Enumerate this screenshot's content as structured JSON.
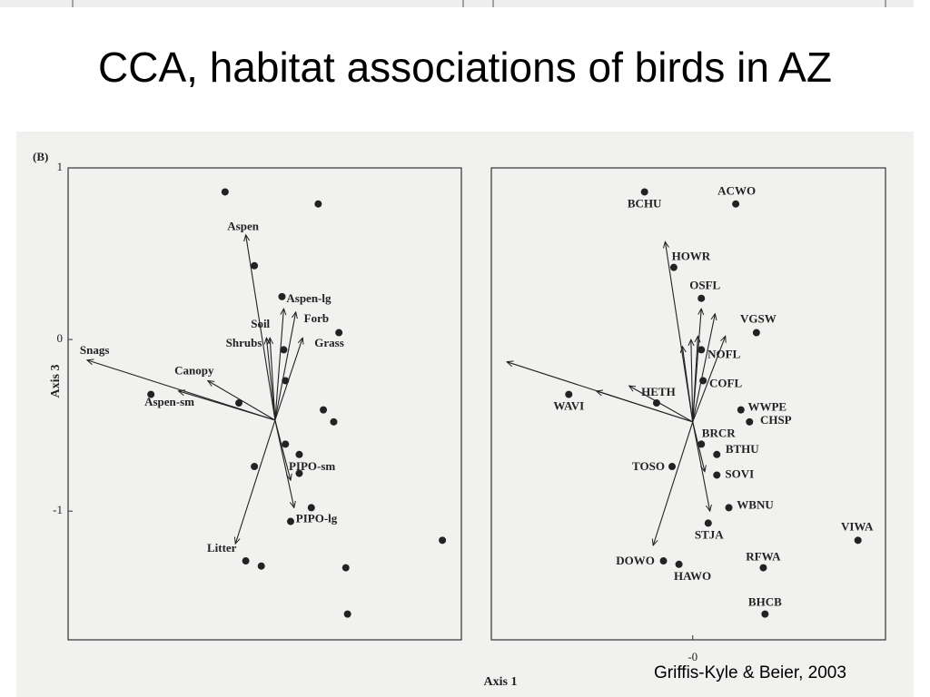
{
  "title": "CCA, habitat associations of birds in AZ",
  "credit": "Griffis-Kyle & Beier, 2003",
  "figure_label": "(B)",
  "x_label": "Axis 1",
  "y_label": "Axis 3",
  "chart_data": [
    {
      "type": "scatter",
      "color": "#222222",
      "xlim": [
        -1.2,
        1.08
      ],
      "ylim": [
        -1.75,
        1.0
      ],
      "yticks": [
        1,
        0,
        -1
      ],
      "x": [
        -0.29,
        0.25,
        -0.12,
        0.04,
        0.37,
        0.05,
        0.06,
        -0.72,
        -0.21,
        0.28,
        0.34,
        0.06,
        0.14,
        -0.12,
        0.14,
        0.21,
        0.09,
        0.97,
        -0.17,
        -0.08,
        0.41,
        0.42
      ],
      "y": [
        0.86,
        0.79,
        0.43,
        0.25,
        0.04,
        -0.06,
        -0.24,
        -0.32,
        -0.37,
        -0.41,
        -0.48,
        -0.61,
        -0.67,
        -0.74,
        -0.78,
        -0.98,
        -1.06,
        -1.17,
        -1.29,
        -1.32,
        -1.33,
        -1.6
      ],
      "vector_origin": {
        "x": 0,
        "y": -0.47
      },
      "vectors": [
        {
          "label": "Aspen",
          "x": -0.17,
          "y": 0.61
        },
        {
          "label": "Aspen-lg",
          "x": 0.05,
          "y": 0.18
        },
        {
          "label": "Forb",
          "x": 0.12,
          "y": 0.16
        },
        {
          "label": "Soil",
          "x": -0.03,
          "y": 0.01
        },
        {
          "label": "Shrubs",
          "x": -0.05,
          "y": 0.01
        },
        {
          "label": "Grass",
          "x": 0.16,
          "y": 0.01
        },
        {
          "label": "Snags",
          "x": -1.09,
          "y": -0.12
        },
        {
          "label": "Canopy",
          "x": -0.39,
          "y": -0.24
        },
        {
          "label": "Aspen-sm",
          "x": -0.56,
          "y": -0.3
        },
        {
          "label": "PIPO-sm",
          "x": 0.09,
          "y": -0.82
        },
        {
          "label": "PIPO-lg",
          "x": 0.11,
          "y": -0.98
        },
        {
          "label": "Litter",
          "x": -0.23,
          "y": -1.19
        }
      ]
    },
    {
      "type": "scatter",
      "color": "#222222",
      "xlim": [
        -1.17,
        1.12
      ],
      "ylim": [
        -1.75,
        1.0
      ],
      "xticks": [
        {
          "value": 0,
          "label": "-0"
        }
      ],
      "labels": [
        "BCHU",
        "ACWO",
        "HOWR",
        "OSFL",
        "VGSW",
        "NOFL",
        "COFL",
        "WAVI",
        "HETH",
        "WWPE",
        "CHSP",
        "BRCR",
        "BTHU",
        "TOSO",
        "SOVI",
        "WBNU",
        "STJA",
        "VIWA",
        "DOWO",
        "HAWO",
        "RFWA",
        "BHCB"
      ],
      "x": [
        -0.28,
        0.25,
        -0.11,
        0.05,
        0.37,
        0.05,
        0.06,
        -0.72,
        -0.21,
        0.28,
        0.33,
        0.05,
        0.14,
        -0.12,
        0.14,
        0.21,
        0.09,
        0.96,
        -0.17,
        -0.08,
        0.41,
        0.42
      ],
      "y": [
        0.86,
        0.79,
        0.42,
        0.24,
        0.04,
        -0.06,
        -0.24,
        -0.32,
        -0.37,
        -0.41,
        -0.48,
        -0.61,
        -0.67,
        -0.74,
        -0.79,
        -0.98,
        -1.07,
        -1.17,
        -1.29,
        -1.31,
        -1.33,
        -1.6
      ],
      "vector_origin": {
        "x": 0,
        "y": -0.48
      },
      "vectors": [
        {
          "x": -0.16,
          "y": 0.57
        },
        {
          "x": 0.05,
          "y": 0.18
        },
        {
          "x": 0.13,
          "y": 0.15
        },
        {
          "x": 0.19,
          "y": 0.02
        },
        {
          "x": 0.03,
          "y": 0.02
        },
        {
          "x": -0.01,
          "y": 0.0
        },
        {
          "x": -0.06,
          "y": -0.04
        },
        {
          "x": -1.08,
          "y": -0.13
        },
        {
          "x": -0.37,
          "y": -0.27
        },
        {
          "x": -0.56,
          "y": -0.3
        },
        {
          "x": 0.07,
          "y": -0.77
        },
        {
          "x": 0.1,
          "y": -1.0
        },
        {
          "x": -0.23,
          "y": -1.2
        }
      ]
    }
  ]
}
